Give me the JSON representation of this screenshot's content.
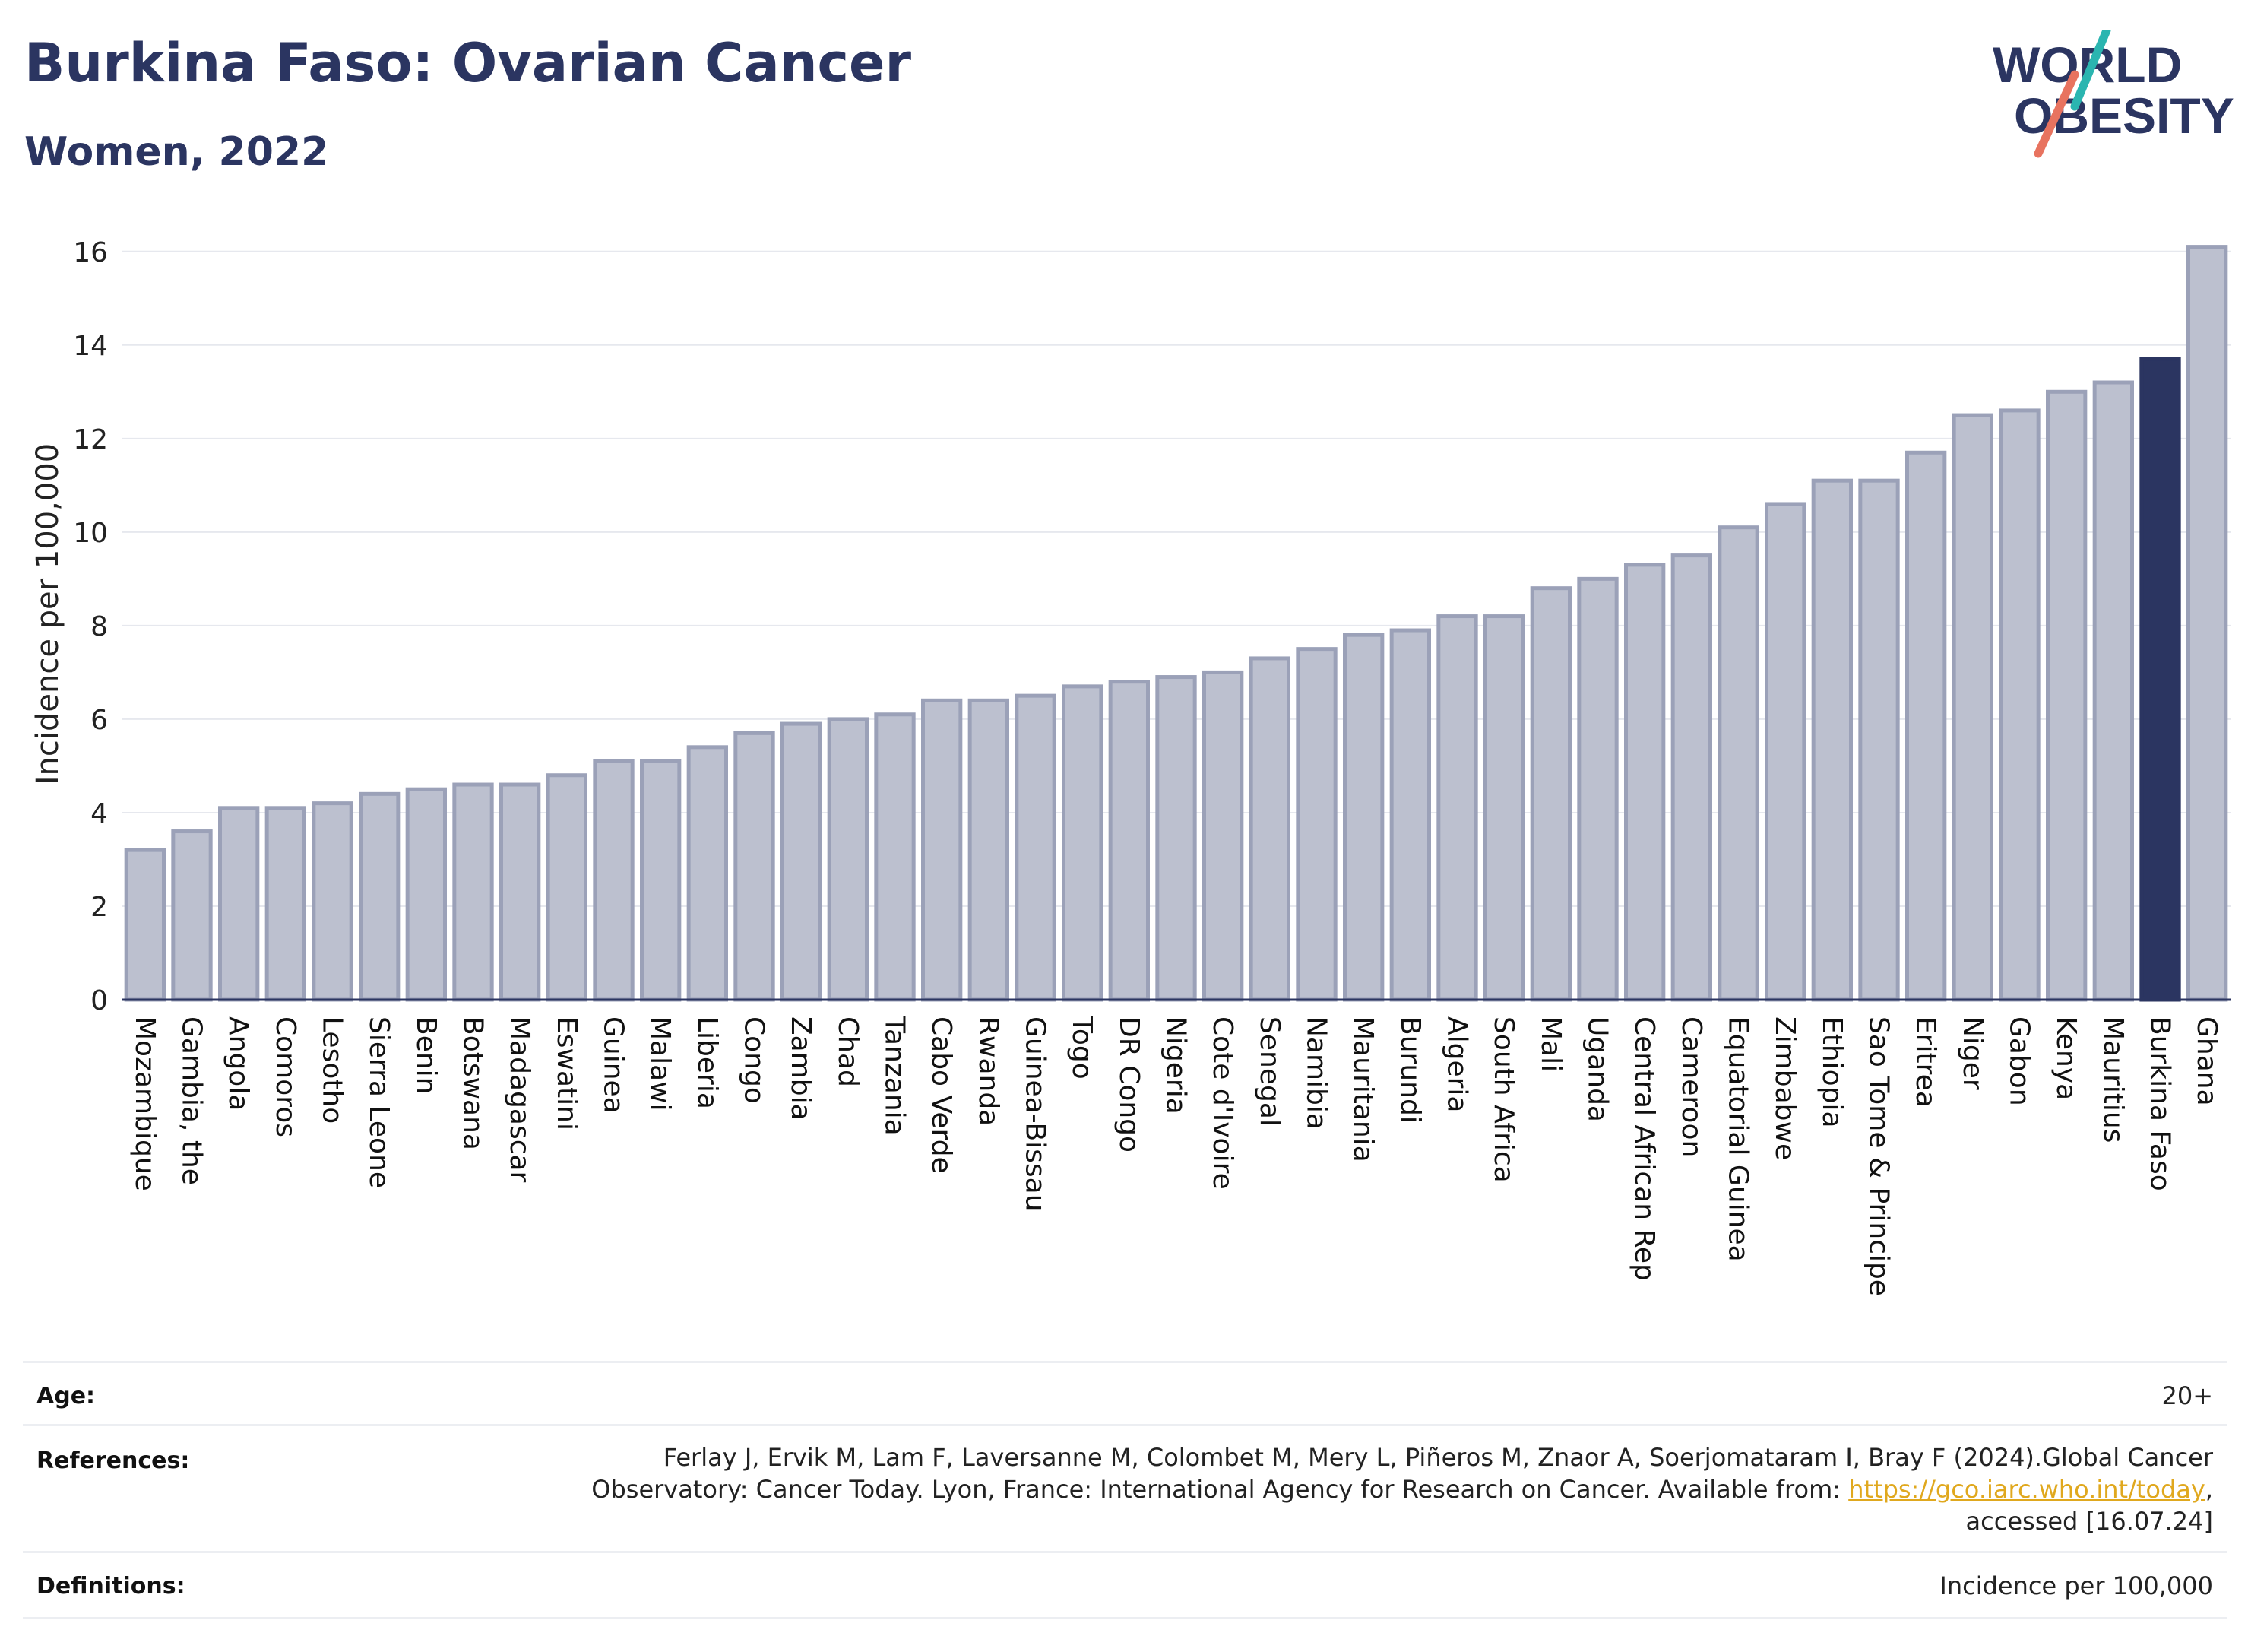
{
  "header": {
    "title": "Burkina Faso: Ovarian Cancer",
    "subtitle": "Women, 2022"
  },
  "logo": {
    "line1": "WORLD",
    "line2": "OBESITY",
    "text_color": "#2b3561",
    "accent_teal": "#2bb5b0",
    "accent_coral": "#e8735f"
  },
  "chart_data": {
    "type": "bar",
    "ylabel": "Incidence per 100,000",
    "xlabel": "",
    "ylim": [
      0,
      16.5
    ],
    "yticks": [
      0,
      2,
      4,
      6,
      8,
      10,
      12,
      14,
      16
    ],
    "grid": true,
    "highlight_category": "Burkina Faso",
    "bar_color": "#bcc0cf",
    "bar_edge_color": "#9ba1b8",
    "highlight_color": "#2b3561",
    "categories": [
      "Mozambique",
      "Gambia, the",
      "Angola",
      "Comoros",
      "Lesotho",
      "Sierra Leone",
      "Benin",
      "Botswana",
      "Madagascar",
      "Eswatini",
      "Guinea",
      "Malawi",
      "Liberia",
      "Congo",
      "Zambia",
      "Chad",
      "Tanzania",
      "Cabo Verde",
      "Rwanda",
      "Guinea-Bissau",
      "Togo",
      "DR Congo",
      "Nigeria",
      "Cote d'Ivoire",
      "Senegal",
      "Namibia",
      "Mauritania",
      "Burundi",
      "Algeria",
      "South Africa",
      "Mali",
      "Uganda",
      "Central African Rep",
      "Cameroon",
      "Equatorial Guinea",
      "Zimbabwe",
      "Ethiopia",
      "Sao Tome & Principe",
      "Eritrea",
      "Niger",
      "Gabon",
      "Kenya",
      "Mauritius",
      "Burkina Faso",
      "Ghana"
    ],
    "values": [
      3.2,
      3.6,
      4.1,
      4.1,
      4.2,
      4.4,
      4.5,
      4.6,
      4.6,
      4.8,
      5.1,
      5.1,
      5.4,
      5.7,
      5.9,
      6.0,
      6.1,
      6.4,
      6.4,
      6.5,
      6.7,
      6.8,
      6.9,
      7.0,
      7.3,
      7.5,
      7.8,
      7.9,
      8.2,
      8.2,
      8.8,
      9.0,
      9.3,
      9.5,
      10.1,
      10.6,
      11.1,
      11.1,
      11.7,
      12.5,
      12.6,
      13.0,
      13.2,
      13.7,
      16.1
    ]
  },
  "info": {
    "age_label": "Age:",
    "age_value": "20+",
    "references_label": "References:",
    "references_line1": "Ferlay J, Ervik M, Lam F, Laversanne M, Colombet M, Mery L, Piñeros M, Znaor A, Soerjomataram I, Bray F (2024).Global Cancer",
    "references_line2_pre": "Observatory: Cancer Today. Lyon, France: International Agency for Research on Cancer. Available from: ",
    "references_link": "https://gco.iarc.who.int/today",
    "references_line2_post": ",",
    "references_line3": "accessed [16.07.24]",
    "definitions_label": "Definitions:",
    "definitions_value": "Incidence per 100,000"
  }
}
